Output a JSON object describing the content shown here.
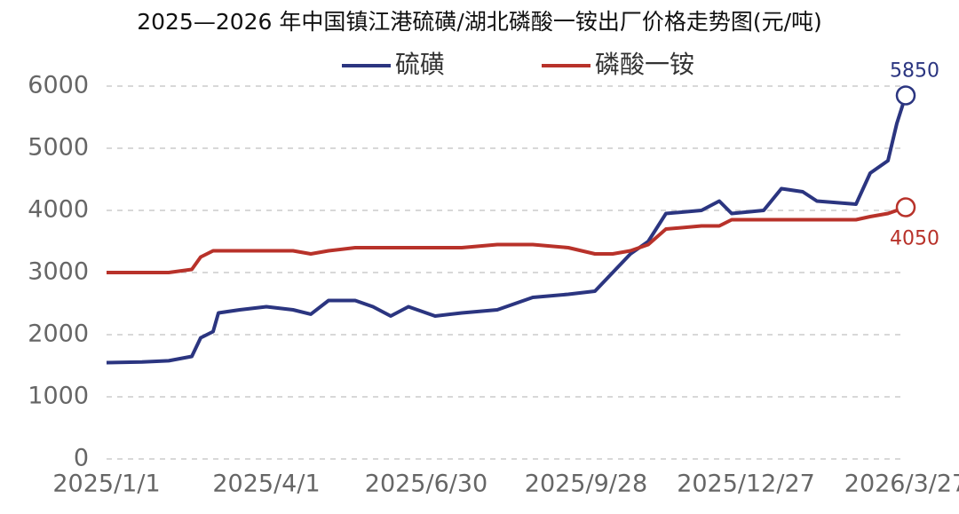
{
  "chart_data": {
    "type": "line",
    "title": "2025—2026 年中国镇江港硫磺/湖北磷酸一铵出厂价格走势图(元/吨)",
    "x": [
      "2025/1/1",
      "2025/1/21",
      "2025/2/5",
      "2025/2/18",
      "2025/2/23",
      "2025/3/2",
      "2025/3/5",
      "2025/3/17",
      "2025/4/1",
      "2025/4/16",
      "2025/4/26",
      "2025/5/6",
      "2025/5/21",
      "2025/5/31",
      "2025/6/10",
      "2025/6/20",
      "2025/7/5",
      "2025/7/20",
      "2025/8/9",
      "2025/8/29",
      "2025/9/18",
      "2025/10/3",
      "2025/10/13",
      "2025/10/23",
      "2025/11/2",
      "2025/11/12",
      "2025/12/2",
      "2025/12/12",
      "2025/12/19",
      "2026/1/6",
      "2026/1/16",
      "2026/1/28",
      "2026/2/5",
      "2026/2/27",
      "2026/3/7",
      "2026/3/17",
      "2026/3/22",
      "2026/3/27"
    ],
    "series": [
      {
        "name": "硫磺",
        "color": "#2b3580",
        "values": [
          1550,
          1560,
          1580,
          1650,
          1950,
          2050,
          2350,
          2400,
          2450,
          2400,
          2330,
          2550,
          2550,
          2450,
          2300,
          2450,
          2300,
          2350,
          2400,
          2600,
          2650,
          2700,
          3000,
          3300,
          3500,
          3950,
          4000,
          4150,
          3950,
          4000,
          4350,
          4300,
          4150,
          4100,
          4600,
          4800,
          5400,
          5850
        ]
      },
      {
        "name": "磷酸一铵",
        "color": "#b8322a",
        "values": [
          3000,
          3000,
          3000,
          3050,
          3250,
          3350,
          3350,
          3350,
          3350,
          3350,
          3300,
          3350,
          3400,
          3400,
          3400,
          3400,
          3400,
          3400,
          3450,
          3450,
          3400,
          3300,
          3300,
          3350,
          3450,
          3700,
          3750,
          3750,
          3850,
          3850,
          3850,
          3850,
          3850,
          3850,
          3900,
          3950,
          4000,
          4050
        ]
      }
    ],
    "xticks": [
      "2025/1/1",
      "2025/4/1",
      "2025/6/30",
      "2025/9/28",
      "2025/12/27",
      "2026/3/27"
    ],
    "ylim": [
      0,
      6000
    ],
    "yticks": [
      0,
      1000,
      2000,
      3000,
      4000,
      5000,
      6000
    ],
    "grid": true
  }
}
